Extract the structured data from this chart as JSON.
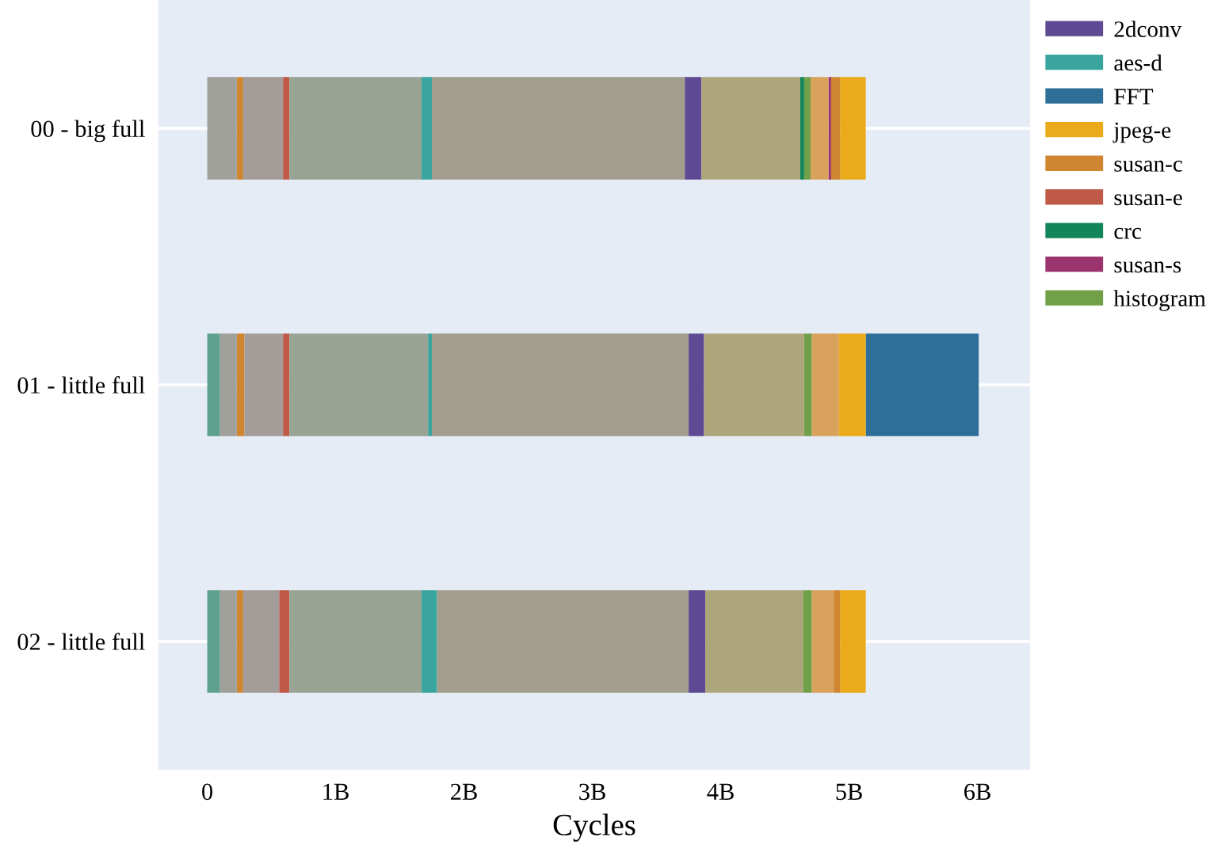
{
  "chart_data": {
    "type": "bar",
    "orientation": "horizontal",
    "xlabel": "Cycles",
    "categories": [
      "00 - big full",
      "01 - little full",
      "02 - little full"
    ],
    "xlim": [
      -380000000.0,
      6410000000.0
    ],
    "xticks": [
      0,
      {
        "value": 1000000000.0,
        "label": "1B"
      },
      {
        "value": 2000000000.0,
        "label": "2B"
      },
      {
        "value": 3000000000.0,
        "label": "3B"
      },
      {
        "value": 4000000000.0,
        "label": "4B"
      },
      {
        "value": 5000000000.0,
        "label": "5B"
      },
      {
        "value": 6000000000.0,
        "label": "6B"
      }
    ],
    "grid": "y",
    "legend": "top right",
    "series": [
      {
        "name": "2dconv",
        "color": "#5e4a93",
        "base": [
          3720000000.0,
          3750000000.0,
          3750000000.0
        ],
        "values": [
          130000000.0,
          120000000.0,
          130000000.0
        ]
      },
      {
        "name": "aes-d",
        "color": "#3aa59e",
        "base": [
          1670000000.0,
          1720000000.0,
          1670000000.0
        ],
        "values": [
          80000000.0,
          30000000.0,
          120000000.0
        ]
      },
      {
        "color": "#5fa08e",
        "base": [
          null,
          0,
          0
        ],
        "values": [
          null,
          100000000.0,
          100000000.0
        ]
      },
      {
        "name": "FFT",
        "color": "#2e6f99",
        "base": [
          null,
          5130000000.0,
          null
        ],
        "values": [
          null,
          880000000.0,
          null
        ]
      },
      {
        "name": "jpeg-e",
        "color": "#ebaa1a",
        "base": [
          4930000000.0,
          4920000000.0,
          4930000000.0
        ],
        "values": [
          200000000.0,
          210000000.0,
          200000000.0
        ]
      },
      {
        "name": "susan-c",
        "color": "#d08630",
        "base": [
          230000000.0,
          230000000.0,
          230000000.0
        ],
        "values": [
          50000000.0,
          60000000.0,
          50000000.0
        ]
      },
      {
        "color": "#d08630",
        "base": [
          4860000000.0,
          null,
          4880000000.0
        ],
        "values": [
          70000000.0,
          null,
          50000000.0
        ]
      },
      {
        "name": "susan-e",
        "color": "#c05a48",
        "base": [
          590000000.0,
          590000000.0,
          560000000.0
        ],
        "values": [
          50000000.0,
          50000000.0,
          80000000.0
        ]
      },
      {
        "name": "crc",
        "color": "#12855a",
        "base": [
          4620000000.0,
          null,
          null
        ],
        "values": [
          30000000.0,
          null,
          null
        ]
      },
      {
        "name": "susan-s",
        "color": "#9c3470",
        "base": [
          4840000000.0,
          null,
          null
        ],
        "values": [
          20000000.0,
          null,
          null
        ]
      },
      {
        "name": "histogram",
        "color": "#72a048",
        "base": [
          4650000000.0,
          4650000000.0,
          4640000000.0
        ],
        "values": [
          50000000.0,
          60000000.0,
          70000000.0
        ]
      },
      {
        "color": "#a0a09a",
        "base": [
          0,
          100000000.0,
          100000000.0
        ],
        "values": [
          230000000.0,
          130000000.0,
          130000000.0
        ]
      },
      {
        "color": "#a39c98",
        "base": [
          280000000.0,
          290000000.0,
          280000000.0
        ],
        "values": [
          310000000.0,
          300000000.0,
          280000000.0
        ]
      },
      {
        "color": "#98a394",
        "base": [
          640000000.0,
          640000000.0,
          640000000.0
        ],
        "values": [
          1030000000.0,
          1080000000.0,
          1030000000.0
        ]
      },
      {
        "color": "#a19e8e",
        "base": [
          1750000000.0,
          1750000000.0,
          1790000000.0
        ],
        "values": [
          1970000000.0,
          2000000000.0,
          1960000000.0
        ]
      },
      {
        "color": "#ada67a",
        "base": [
          3850000000.0,
          3870000000.0,
          3880000000.0
        ],
        "values": [
          770000000.0,
          780000000.0,
          760000000.0
        ]
      },
      {
        "color": "#d9a25c",
        "base": [
          4700000000.0,
          4710000000.0,
          4710000000.0
        ],
        "values": [
          140000000.0,
          210000000.0,
          170000000.0
        ]
      }
    ]
  }
}
